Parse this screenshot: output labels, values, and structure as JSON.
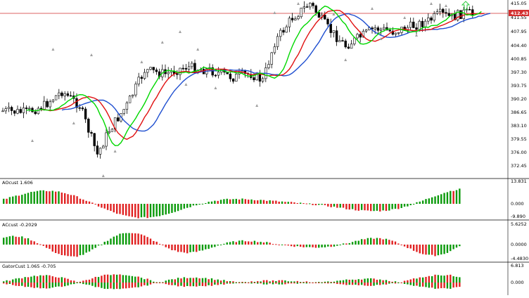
{
  "colors": {
    "background": "#ffffff",
    "bull_body": "#ffffff",
    "bear_body": "#000000",
    "wick": "#000000",
    "ma_fast": "#00d800",
    "ma_mid": "#e01010",
    "ma_slow": "#1f4fd0",
    "current_price_line": "#d32f2f",
    "histogram_up": "#0a9a0a",
    "histogram_down": "#e02020",
    "signal_arrow": "#2ecc40",
    "fractal_marker": "#a0a0a0",
    "separator": "#000000"
  },
  "chart_data": [
    {
      "type": "candlestick",
      "pane": "price",
      "ylim": [
        370.5,
        417.5
      ],
      "price_ticks": [
        "415.05",
        "411.55",
        "407.95",
        "404.40",
        "400.85",
        "397.30",
        "393.75",
        "390.20",
        "386.65",
        "383.10",
        "379.55",
        "376.00",
        "372.45"
      ],
      "current_price_label": "412.43",
      "current_price": 412.43,
      "moving_averages": [
        "ma_fast",
        "ma_mid",
        "ma_slow"
      ],
      "signal_arrow": "up-arrow-icon"
    },
    {
      "type": "histogram",
      "pane": "indicator-1",
      "label": "AOcust 1.606",
      "ticks": [
        "13.831",
        "0.000",
        "-9.890"
      ],
      "ylim": [
        -9.89,
        13.831
      ]
    },
    {
      "type": "histogram",
      "pane": "indicator-2",
      "label": "ACcust -0.2029",
      "ticks": [
        "5.6252",
        "0.0000",
        "-4.4830"
      ],
      "ylim": [
        -4.483,
        5.6252
      ]
    },
    {
      "type": "histogram",
      "pane": "indicator-3",
      "label": "GatorCust 1.065 -0.705",
      "ticks": [
        "6.813",
        "0.000"
      ],
      "ylim": [
        -6.813,
        6.813
      ]
    }
  ]
}
